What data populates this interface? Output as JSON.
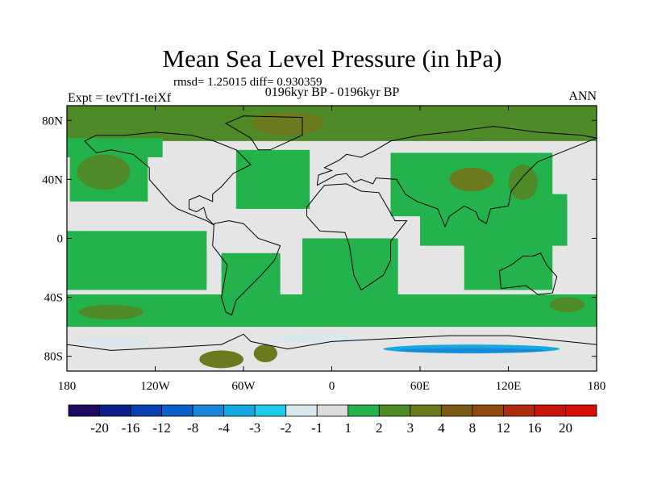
{
  "chart_data": {
    "type": "heatmap",
    "title": "Mean Sea Level Pressure (in hPa)",
    "stats_line": "rmsd= 1.25015 diff= 0.930359",
    "left_label": "Expt = tevTf1-teiXf",
    "center_label": "0196kyr BP - 0196kyr BP",
    "right_label": "ANN",
    "x_axis": {
      "range": [
        -180,
        180
      ],
      "ticks": [
        {
          "value": -180,
          "label": "180"
        },
        {
          "value": -120,
          "label": "120W"
        },
        {
          "value": -60,
          "label": "60W"
        },
        {
          "value": 0,
          "label": "0"
        },
        {
          "value": 60,
          "label": "60E"
        },
        {
          "value": 120,
          "label": "120E"
        },
        {
          "value": 180,
          "label": "180"
        }
      ]
    },
    "y_axis": {
      "range": [
        -90,
        90
      ],
      "ticks": [
        {
          "value": 80,
          "label": "80N"
        },
        {
          "value": 40,
          "label": "40N"
        },
        {
          "value": 0,
          "label": "0"
        },
        {
          "value": -40,
          "label": "40S"
        },
        {
          "value": -80,
          "label": "80S"
        }
      ]
    },
    "colorbar": {
      "colors": [
        "#1d0a5e",
        "#0b1f8c",
        "#0a3fb0",
        "#0a5fc8",
        "#1a86d8",
        "#16a8e0",
        "#1ccce8",
        "#d9e8ec",
        "#dcdcdc",
        "#23b24b",
        "#4e8a28",
        "#6b7a1e",
        "#7a5a16",
        "#8e4a12",
        "#b02a0c",
        "#c81408",
        "#d80c06"
      ],
      "labels": [
        "-20",
        "-16",
        "-12",
        "-8",
        "-4",
        "-3",
        "-2",
        "-1",
        "1",
        "2",
        "3",
        "4",
        "8",
        "12",
        "16",
        "20"
      ]
    },
    "fields": {
      "background": "#e5e5e5",
      "bands": [
        {
          "lat": [
            66,
            90
          ],
          "lon": [
            -180,
            180
          ],
          "value": 2.5
        },
        {
          "lat": [
            55,
            68
          ],
          "lon": [
            -180,
            -115
          ],
          "value": 2
        },
        {
          "lat": [
            25,
            60
          ],
          "lon": [
            -178,
            -125
          ],
          "value": 2
        },
        {
          "lat": [
            20,
            60
          ],
          "lon": [
            -65,
            -15
          ],
          "value": 2
        },
        {
          "lat": [
            15,
            58
          ],
          "lon": [
            40,
            150
          ],
          "value": 2
        },
        {
          "lat": [
            -5,
            30
          ],
          "lon": [
            60,
            160
          ],
          "value": 2
        },
        {
          "lat": [
            -35,
            5
          ],
          "lon": [
            -180,
            -85
          ],
          "value": 2
        },
        {
          "lat": [
            -60,
            -38
          ],
          "lon": [
            -180,
            180
          ],
          "value": 2
        },
        {
          "lat": [
            -45,
            -10
          ],
          "lon": [
            -75,
            -35
          ],
          "value": 2
        },
        {
          "lat": [
            -40,
            0
          ],
          "lon": [
            -20,
            45
          ],
          "value": 2
        },
        {
          "lat": [
            -35,
            10
          ],
          "lon": [
            90,
            150
          ],
          "value": 2
        }
      ],
      "patches": [
        {
          "lat": 45,
          "lon": -155,
          "rlat": 12,
          "rlon": 18,
          "value": 3
        },
        {
          "lat": 78,
          "lon": -30,
          "rlat": 8,
          "rlon": 25,
          "value": 3.5
        },
        {
          "lat": 74,
          "lon": 100,
          "rlat": 8,
          "rlon": 35,
          "value": 3
        },
        {
          "lat": 40,
          "lon": 95,
          "rlat": 8,
          "rlon": 15,
          "value": 3.5
        },
        {
          "lat": 38,
          "lon": 130,
          "rlat": 12,
          "rlon": 10,
          "value": 3
        },
        {
          "lat": -50,
          "lon": -150,
          "rlat": 5,
          "rlon": 22,
          "value": 3
        },
        {
          "lat": -82,
          "lon": -75,
          "rlat": 6,
          "rlon": 15,
          "value": 4
        },
        {
          "lat": -78,
          "lon": -45,
          "rlat": 6,
          "rlon": 8,
          "value": 3.5
        },
        {
          "lat": -45,
          "lon": 160,
          "rlat": 5,
          "rlon": 12,
          "value": 3
        },
        {
          "lat": -70,
          "lon": -150,
          "rlat": 3,
          "rlon": 25,
          "value": -1.5
        },
        {
          "lat": -68,
          "lon": -10,
          "rlat": 3,
          "rlon": 30,
          "value": -1.5
        },
        {
          "lat": -75,
          "lon": 95,
          "rlat": 3,
          "rlon": 60,
          "value": -3
        },
        {
          "lat": -76,
          "lon": 95,
          "rlat": 1.5,
          "rlon": 50,
          "value": -6
        }
      ]
    }
  }
}
